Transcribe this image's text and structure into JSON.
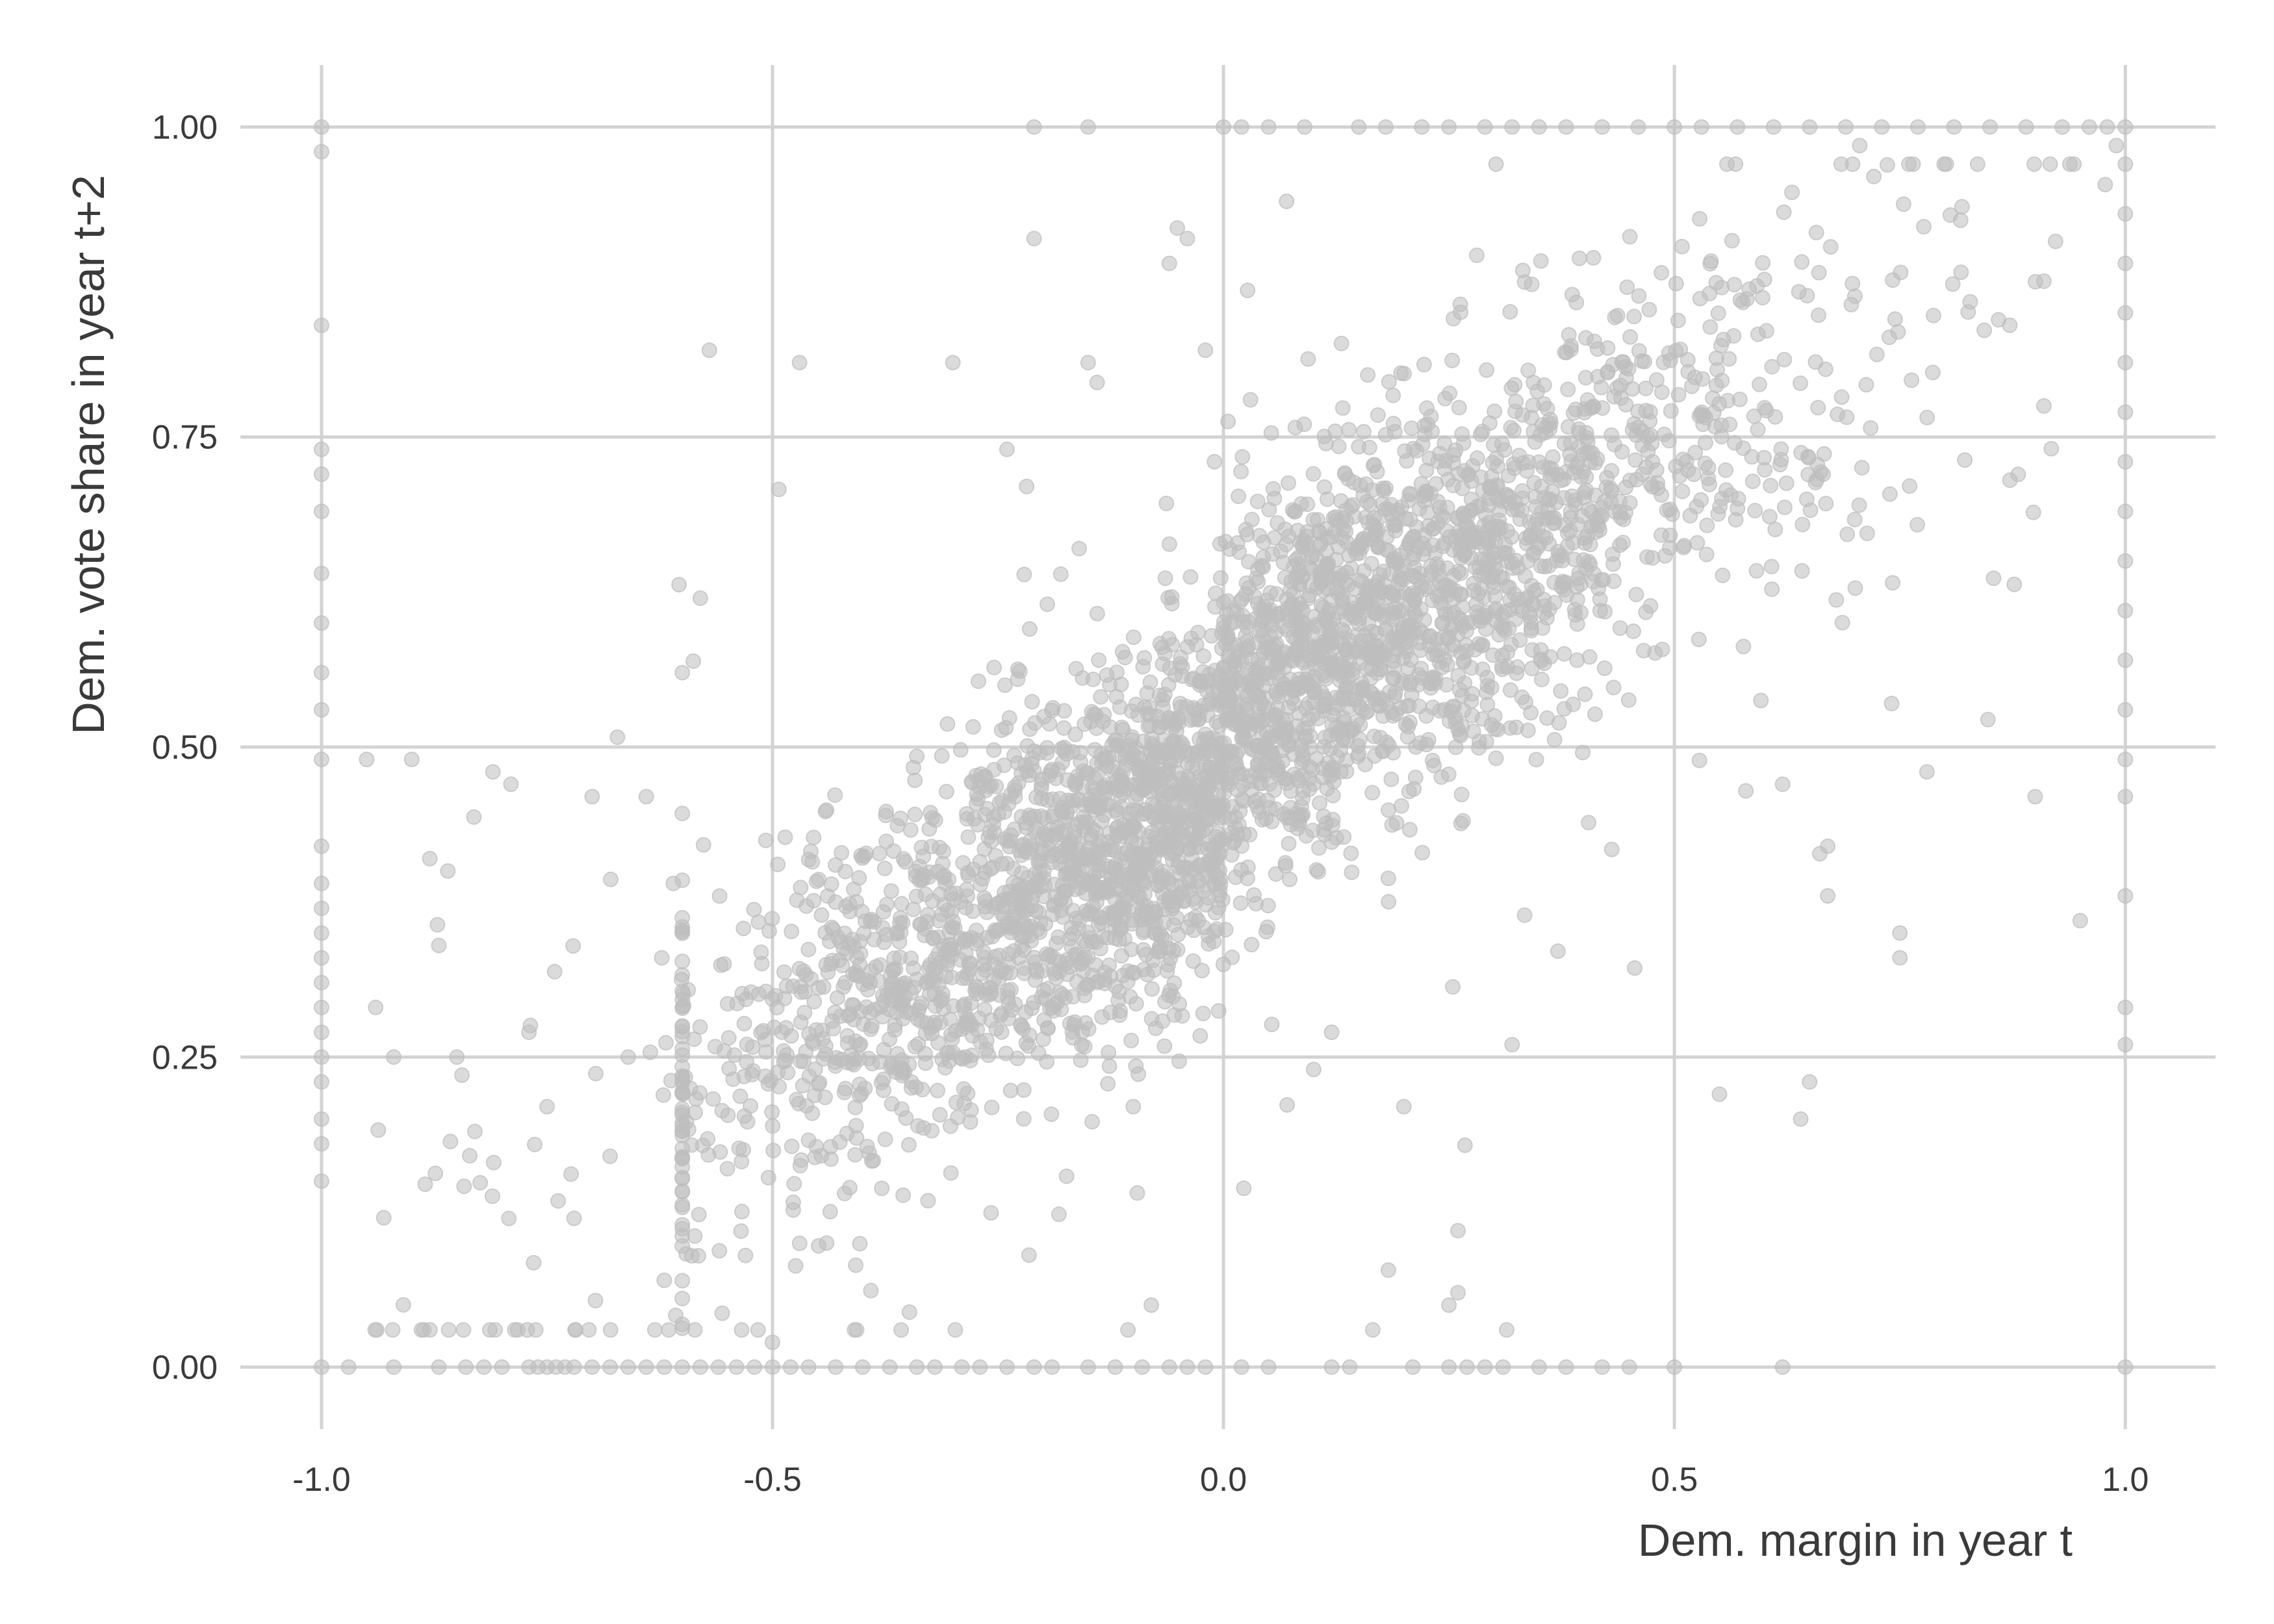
{
  "chart_data": {
    "type": "scatter",
    "xlabel": "Dem. margin in year t",
    "ylabel": "Dem. vote share in year t+2",
    "xlim": [
      -1.09,
      1.1
    ],
    "ylim": [
      -0.05,
      1.05
    ],
    "x_ticks": [
      -1.0,
      -0.5,
      0.0,
      0.5,
      1.0
    ],
    "x_tick_labels": [
      "-1.0",
      "-0.5",
      "0.0",
      "0.5",
      "1.0"
    ],
    "y_ticks": [
      0.0,
      0.25,
      0.5,
      0.75,
      1.0
    ],
    "y_tick_labels": [
      "0.00",
      "0.25",
      "0.50",
      "0.75",
      "1.00"
    ],
    "grid": true,
    "legend": "none",
    "point_color": "#bdbdbd",
    "point_opacity": 0.55,
    "points": [
      [
        -1.0,
        0.0
      ],
      [
        -1.0,
        0.15
      ],
      [
        -1.0,
        0.18
      ],
      [
        -1.0,
        0.2
      ],
      [
        -1.0,
        0.23
      ],
      [
        -1.0,
        0.25
      ],
      [
        -1.0,
        0.27
      ],
      [
        -1.0,
        0.29
      ],
      [
        -1.0,
        0.31
      ],
      [
        -1.0,
        0.33
      ],
      [
        -1.0,
        0.35
      ],
      [
        -1.0,
        0.37
      ],
      [
        -1.0,
        0.39
      ],
      [
        -1.0,
        0.42
      ],
      [
        -1.0,
        0.49
      ],
      [
        -1.0,
        0.53
      ],
      [
        -1.0,
        0.56
      ],
      [
        -1.0,
        0.6
      ],
      [
        -1.0,
        0.64
      ],
      [
        -1.0,
        0.69
      ],
      [
        -1.0,
        0.72
      ],
      [
        -1.0,
        0.74
      ],
      [
        -1.0,
        0.84
      ],
      [
        -1.0,
        0.98
      ],
      [
        -1.0,
        1.0
      ],
      [
        1.0,
        0.0
      ],
      [
        1.0,
        0.26
      ],
      [
        1.0,
        0.29
      ],
      [
        1.0,
        0.38
      ],
      [
        1.0,
        0.46
      ],
      [
        1.0,
        0.49
      ],
      [
        1.0,
        0.53
      ],
      [
        1.0,
        0.57
      ],
      [
        1.0,
        0.61
      ],
      [
        1.0,
        0.65
      ],
      [
        1.0,
        0.69
      ],
      [
        1.0,
        0.73
      ],
      [
        1.0,
        0.77
      ],
      [
        1.0,
        0.81
      ],
      [
        1.0,
        0.85
      ],
      [
        1.0,
        0.89
      ],
      [
        1.0,
        0.93
      ],
      [
        1.0,
        0.97
      ],
      [
        1.0,
        1.0
      ],
      [
        -0.97,
        0.0
      ],
      [
        -0.92,
        0.0
      ],
      [
        -0.87,
        0.0
      ],
      [
        -0.84,
        0.0
      ],
      [
        -0.82,
        0.0
      ],
      [
        -0.8,
        0.0
      ],
      [
        -0.77,
        0.0
      ],
      [
        -0.76,
        0.0
      ],
      [
        -0.75,
        0.0
      ],
      [
        -0.74,
        0.0
      ],
      [
        -0.73,
        0.0
      ],
      [
        -0.72,
        0.0
      ],
      [
        -0.7,
        0.0
      ],
      [
        -0.68,
        0.0
      ],
      [
        -0.66,
        0.0
      ],
      [
        -0.64,
        0.0
      ],
      [
        -0.62,
        0.0
      ],
      [
        -0.6,
        0.0
      ],
      [
        -0.58,
        0.0
      ],
      [
        -0.56,
        0.0
      ],
      [
        -0.54,
        0.0
      ],
      [
        -0.52,
        0.0
      ],
      [
        -0.5,
        0.0
      ],
      [
        -0.48,
        0.0
      ],
      [
        -0.46,
        0.0
      ],
      [
        -0.43,
        0.0
      ],
      [
        -0.4,
        0.0
      ],
      [
        -0.37,
        0.0
      ],
      [
        -0.34,
        0.0
      ],
      [
        -0.32,
        0.0
      ],
      [
        -0.29,
        0.0
      ],
      [
        -0.27,
        0.0
      ],
      [
        -0.24,
        0.0
      ],
      [
        -0.21,
        0.0
      ],
      [
        -0.19,
        0.0
      ],
      [
        -0.15,
        0.0
      ],
      [
        -0.12,
        0.0
      ],
      [
        -0.09,
        0.0
      ],
      [
        -0.06,
        0.0
      ],
      [
        -0.04,
        0.0
      ],
      [
        -0.02,
        0.0
      ],
      [
        0.02,
        0.0
      ],
      [
        0.05,
        0.0
      ],
      [
        0.12,
        0.0
      ],
      [
        0.14,
        0.0
      ],
      [
        0.21,
        0.0
      ],
      [
        0.25,
        0.0
      ],
      [
        0.27,
        0.0
      ],
      [
        0.29,
        0.0
      ],
      [
        0.31,
        0.0
      ],
      [
        0.35,
        0.0
      ],
      [
        0.38,
        0.0
      ],
      [
        0.42,
        0.0
      ],
      [
        0.45,
        0.0
      ],
      [
        0.5,
        0.0
      ],
      [
        0.62,
        0.0
      ],
      [
        0.0,
        1.0
      ],
      [
        0.02,
        1.0
      ],
      [
        0.05,
        1.0
      ],
      [
        0.09,
        1.0
      ],
      [
        0.15,
        1.0
      ],
      [
        0.18,
        1.0
      ],
      [
        0.22,
        1.0
      ],
      [
        0.25,
        1.0
      ],
      [
        0.29,
        1.0
      ],
      [
        0.32,
        1.0
      ],
      [
        0.35,
        1.0
      ],
      [
        0.38,
        1.0
      ],
      [
        0.42,
        1.0
      ],
      [
        0.46,
        1.0
      ],
      [
        0.5,
        1.0
      ],
      [
        0.53,
        1.0
      ],
      [
        0.57,
        1.0
      ],
      [
        0.61,
        1.0
      ],
      [
        0.65,
        1.0
      ],
      [
        0.69,
        1.0
      ],
      [
        0.73,
        1.0
      ],
      [
        0.77,
        1.0
      ],
      [
        0.81,
        1.0
      ],
      [
        0.85,
        1.0
      ],
      [
        0.89,
        1.0
      ],
      [
        0.93,
        1.0
      ],
      [
        0.96,
        1.0
      ],
      [
        0.98,
        1.0
      ],
      [
        -0.21,
        1.0
      ],
      [
        -0.15,
        1.0
      ],
      [
        -0.95,
        0.49
      ],
      [
        -0.94,
        0.29
      ],
      [
        -0.92,
        0.25
      ],
      [
        -0.9,
        0.49
      ],
      [
        -0.88,
        0.41
      ],
      [
        -0.87,
        0.34
      ],
      [
        -0.86,
        0.4
      ],
      [
        -0.85,
        0.25
      ],
      [
        -0.83,
        0.19
      ],
      [
        -0.81,
        0.48
      ],
      [
        -0.79,
        0.47
      ],
      [
        -0.77,
        0.27
      ],
      [
        -0.75,
        0.21
      ],
      [
        -0.72,
        0.12
      ],
      [
        -0.7,
        0.46
      ],
      [
        -0.68,
        0.17
      ],
      [
        -0.66,
        0.25
      ],
      [
        -0.64,
        0.46
      ],
      [
        -0.62,
        0.07
      ],
      [
        -0.61,
        0.39
      ],
      [
        -0.6,
        0.56
      ],
      [
        -0.58,
        0.62
      ],
      [
        -0.57,
        0.82
      ],
      [
        -0.55,
        0.16
      ],
      [
        -0.53,
        0.09
      ],
      [
        -0.5,
        0.02
      ],
      [
        -0.47,
        0.81
      ],
      [
        -0.44,
        0.1
      ],
      [
        -0.42,
        0.14
      ],
      [
        -0.3,
        0.81
      ],
      [
        -0.24,
        0.74
      ],
      [
        -0.21,
        0.91
      ],
      [
        -0.16,
        0.66
      ],
      [
        -0.15,
        0.81
      ],
      [
        -0.1,
        0.21
      ],
      [
        -0.08,
        0.05
      ],
      [
        -0.06,
        0.89
      ],
      [
        -0.04,
        0.91
      ],
      [
        -0.02,
        0.82
      ],
      [
        -0.01,
        0.73
      ],
      [
        0.03,
        0.78
      ],
      [
        0.07,
        0.94
      ],
      [
        0.1,
        0.24
      ],
      [
        0.12,
        0.27
      ],
      [
        0.16,
        0.8
      ],
      [
        0.2,
        0.21
      ],
      [
        0.25,
        0.05
      ],
      [
        0.26,
        0.11
      ],
      [
        0.26,
        0.06
      ],
      [
        0.32,
        0.26
      ],
      [
        0.55,
        0.22
      ],
      [
        0.62,
        0.47
      ],
      [
        0.64,
        0.2
      ],
      [
        0.65,
        0.23
      ],
      [
        0.67,
        0.42
      ],
      [
        0.67,
        0.38
      ],
      [
        0.75,
        0.33
      ],
      [
        0.75,
        0.35
      ],
      [
        0.78,
        0.48
      ],
      [
        0.9,
        0.46
      ],
      [
        0.95,
        0.36
      ]
    ]
  }
}
